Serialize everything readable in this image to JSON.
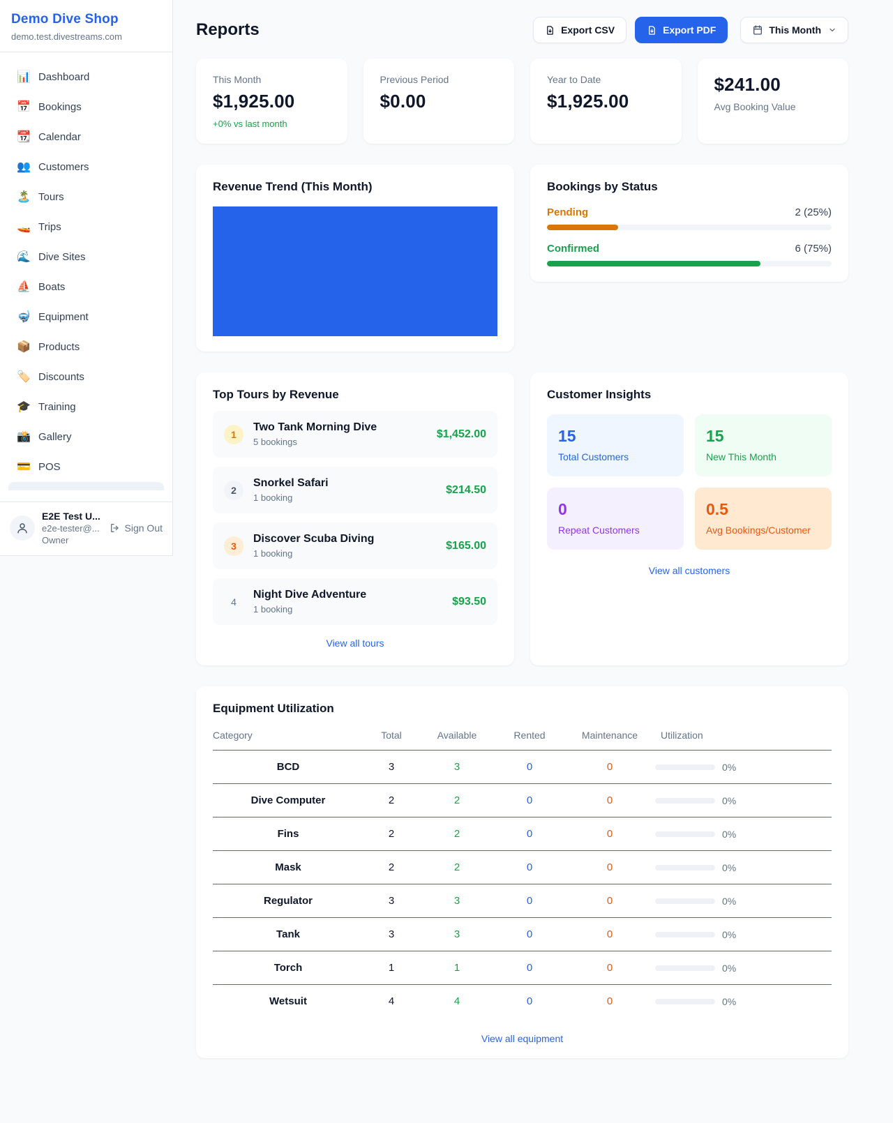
{
  "sidebar": {
    "shop_name": "Demo Dive Shop",
    "shop_domain": "demo.test.divestreams.com",
    "items": [
      {
        "icon": "📊",
        "label": "Dashboard"
      },
      {
        "icon": "📅",
        "label": "Bookings"
      },
      {
        "icon": "📆",
        "label": "Calendar"
      },
      {
        "icon": "👥",
        "label": "Customers"
      },
      {
        "icon": "🏝️",
        "label": "Tours"
      },
      {
        "icon": "🚤",
        "label": "Trips"
      },
      {
        "icon": "🌊",
        "label": "Dive Sites"
      },
      {
        "icon": "⛵",
        "label": "Boats"
      },
      {
        "icon": "🤿",
        "label": "Equipment"
      },
      {
        "icon": "📦",
        "label": "Products"
      },
      {
        "icon": "🏷️",
        "label": "Discounts"
      },
      {
        "icon": "🎓",
        "label": "Training"
      },
      {
        "icon": "📸",
        "label": "Gallery"
      },
      {
        "icon": "💳",
        "label": "POS"
      }
    ],
    "user": {
      "name": "E2E Test U...",
      "email": "e2e-tester@...",
      "role": "Owner",
      "sign_out_label": "Sign Out"
    }
  },
  "header": {
    "title": "Reports",
    "export_csv_label": "Export CSV",
    "export_pdf_label": "Export PDF",
    "period_label": "This Month"
  },
  "stats": [
    {
      "label": "This Month",
      "value": "$1,925.00",
      "delta": "+0% vs last month"
    },
    {
      "label": "Previous Period",
      "value": "$0.00"
    },
    {
      "label": "Year to Date",
      "value": "$1,925.00"
    },
    {
      "label": "Avg Booking Value",
      "value": "$241.00"
    }
  ],
  "revenue_trend": {
    "title": "Revenue Trend (This Month)",
    "bar_color": "#2563eb"
  },
  "bookings_by_status": {
    "title": "Bookings by Status",
    "rows": [
      {
        "label": "Pending",
        "count_text": "2 (25%)",
        "pct": 25,
        "color": "#d97706"
      },
      {
        "label": "Confirmed",
        "count_text": "6 (75%)",
        "pct": 75,
        "color": "#16a34a"
      }
    ]
  },
  "top_tours": {
    "title": "Top Tours by Revenue",
    "link_label": "View all tours",
    "rows": [
      {
        "rank": "1",
        "name": "Two Tank Morning Dive",
        "bookings": "5 bookings",
        "amount": "$1,452.00"
      },
      {
        "rank": "2",
        "name": "Snorkel Safari",
        "bookings": "1 booking",
        "amount": "$214.50"
      },
      {
        "rank": "3",
        "name": "Discover Scuba Diving",
        "bookings": "1 booking",
        "amount": "$165.00"
      },
      {
        "rank": "4",
        "name": "Night Dive Adventure",
        "bookings": "1 booking",
        "amount": "$93.50"
      }
    ]
  },
  "customer_insights": {
    "title": "Customer Insights",
    "link_label": "View all customers",
    "tiles": [
      {
        "value": "15",
        "label": "Total Customers",
        "accent": "#2563eb"
      },
      {
        "value": "15",
        "label": "New This Month",
        "accent": "#16a34a"
      },
      {
        "value": "0",
        "label": "Repeat Customers",
        "accent": "#9333ea"
      },
      {
        "value": "0.5",
        "label": "Avg Bookings/Customer",
        "accent": "#ea580c"
      }
    ]
  },
  "equipment": {
    "title": "Equipment Utilization",
    "link_label": "View all equipment",
    "columns": [
      "Category",
      "Total",
      "Available",
      "Rented",
      "Maintenance",
      "Utilization"
    ],
    "rows": [
      {
        "category": "BCD",
        "total": "3",
        "available": "3",
        "rented": "0",
        "maintenance": "0",
        "utilization": "0%",
        "utilization_pct": 0
      },
      {
        "category": "Dive Computer",
        "total": "2",
        "available": "2",
        "rented": "0",
        "maintenance": "0",
        "utilization": "0%",
        "utilization_pct": 0
      },
      {
        "category": "Fins",
        "total": "2",
        "available": "2",
        "rented": "0",
        "maintenance": "0",
        "utilization": "0%",
        "utilization_pct": 0
      },
      {
        "category": "Mask",
        "total": "2",
        "available": "2",
        "rented": "0",
        "maintenance": "0",
        "utilization": "0%",
        "utilization_pct": 0
      },
      {
        "category": "Regulator",
        "total": "3",
        "available": "3",
        "rented": "0",
        "maintenance": "0",
        "utilization": "0%",
        "utilization_pct": 0
      },
      {
        "category": "Tank",
        "total": "3",
        "available": "3",
        "rented": "0",
        "maintenance": "0",
        "utilization": "0%",
        "utilization_pct": 0
      },
      {
        "category": "Torch",
        "total": "1",
        "available": "1",
        "rented": "0",
        "maintenance": "0",
        "utilization": "0%",
        "utilization_pct": 0
      },
      {
        "category": "Wetsuit",
        "total": "4",
        "available": "4",
        "rented": "0",
        "maintenance": "0",
        "utilization": "0%",
        "utilization_pct": 0
      }
    ]
  },
  "chart_data": {
    "type": "bar",
    "title": "Revenue Trend (This Month)",
    "categories": [
      "This Month"
    ],
    "values": [
      1925
    ],
    "note": "single full-width solid bar, no axes or labels visible"
  }
}
